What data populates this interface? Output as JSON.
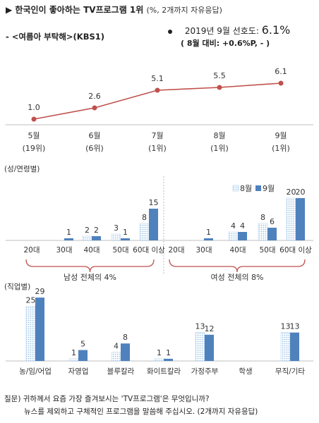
{
  "header": {
    "marker": "▶",
    "title": "한국인이 좋아하는 TV프로그램 1위",
    "subtitle": "(%, 2개까지 자유응답)",
    "program": "- <여름아 부탁해>(KBS1)",
    "pref_label": "2019년 9월 선호도:",
    "pref_value": "6.1%",
    "pref_change": "( 8월 대비: +0.6%P,  - )"
  },
  "colors": {
    "line": "#c0504d",
    "bar_aug": "#9dc3e6",
    "bar_sep": "#4f81bd",
    "axis": "#bfbfbf",
    "brace": "#c0504d"
  },
  "question": {
    "line1": "질문) 귀하께서 요즘 가장 즐겨보시는 'TV프로그램'은 무엇입니까?",
    "line2": "뉴스를 제외하고 구체적인 프로그램을 말씀해 주십시오. (2개까지 자유응답)"
  },
  "chart_data": [
    {
      "type": "line",
      "categories": [
        "5월",
        "6월",
        "7월",
        "8월",
        "9월"
      ],
      "ranks": [
        "(19위)",
        "(6위)",
        "(1위)",
        "(1위)",
        "(1위)"
      ],
      "values": [
        1.0,
        2.6,
        5.1,
        5.5,
        6.1
      ],
      "value_labels": [
        "1.0",
        "2.6",
        "5.1",
        "5.5",
        "6.1"
      ]
    },
    {
      "type": "bar",
      "section_label": "(성/연령별)",
      "legend": [
        "8월",
        "9월"
      ],
      "legend_position": "top-right",
      "groups": [
        {
          "label": "남성 전체의 4%",
          "categories": [
            "20대",
            "30대",
            "40대",
            "50대",
            "60대 이상"
          ],
          "series": [
            {
              "name": "8월",
              "values": [
                0,
                0,
                2,
                3,
                8
              ],
              "labels": [
                "",
                "",
                "2",
                "3",
                "8"
              ]
            },
            {
              "name": "9월",
              "values": [
                0,
                1,
                2,
                1,
                15
              ],
              "labels": [
                "",
                "1",
                "2",
                "1",
                "15"
              ]
            }
          ]
        },
        {
          "label": "여성 전체의 8%",
          "categories": [
            "20대",
            "30대",
            "40대",
            "50대",
            "60대 이상"
          ],
          "series": [
            {
              "name": "8월",
              "values": [
                0,
                0,
                4,
                8,
                20
              ],
              "labels": [
                "",
                "",
                "4",
                "8",
                "20"
              ]
            },
            {
              "name": "9월",
              "values": [
                0,
                1,
                4,
                6,
                20
              ],
              "labels": [
                "",
                "1",
                "4",
                "6",
                "20"
              ]
            }
          ]
        }
      ]
    },
    {
      "type": "bar",
      "section_label": "(직업별)",
      "categories": [
        "농/임/어업",
        "자영업",
        "블루칼라",
        "화이트칼라",
        "가정주부",
        "학생",
        "무직/기타"
      ],
      "series": [
        {
          "name": "8월",
          "values": [
            25,
            1,
            4,
            1,
            13,
            0,
            13
          ],
          "labels": [
            "25",
            "1",
            "4",
            "1",
            "13",
            "",
            "13"
          ]
        },
        {
          "name": "9월",
          "values": [
            29,
            5,
            8,
            1,
            12,
            0,
            13
          ],
          "labels": [
            "29",
            "5",
            "8",
            "1",
            "12",
            "",
            "13"
          ]
        }
      ]
    }
  ]
}
